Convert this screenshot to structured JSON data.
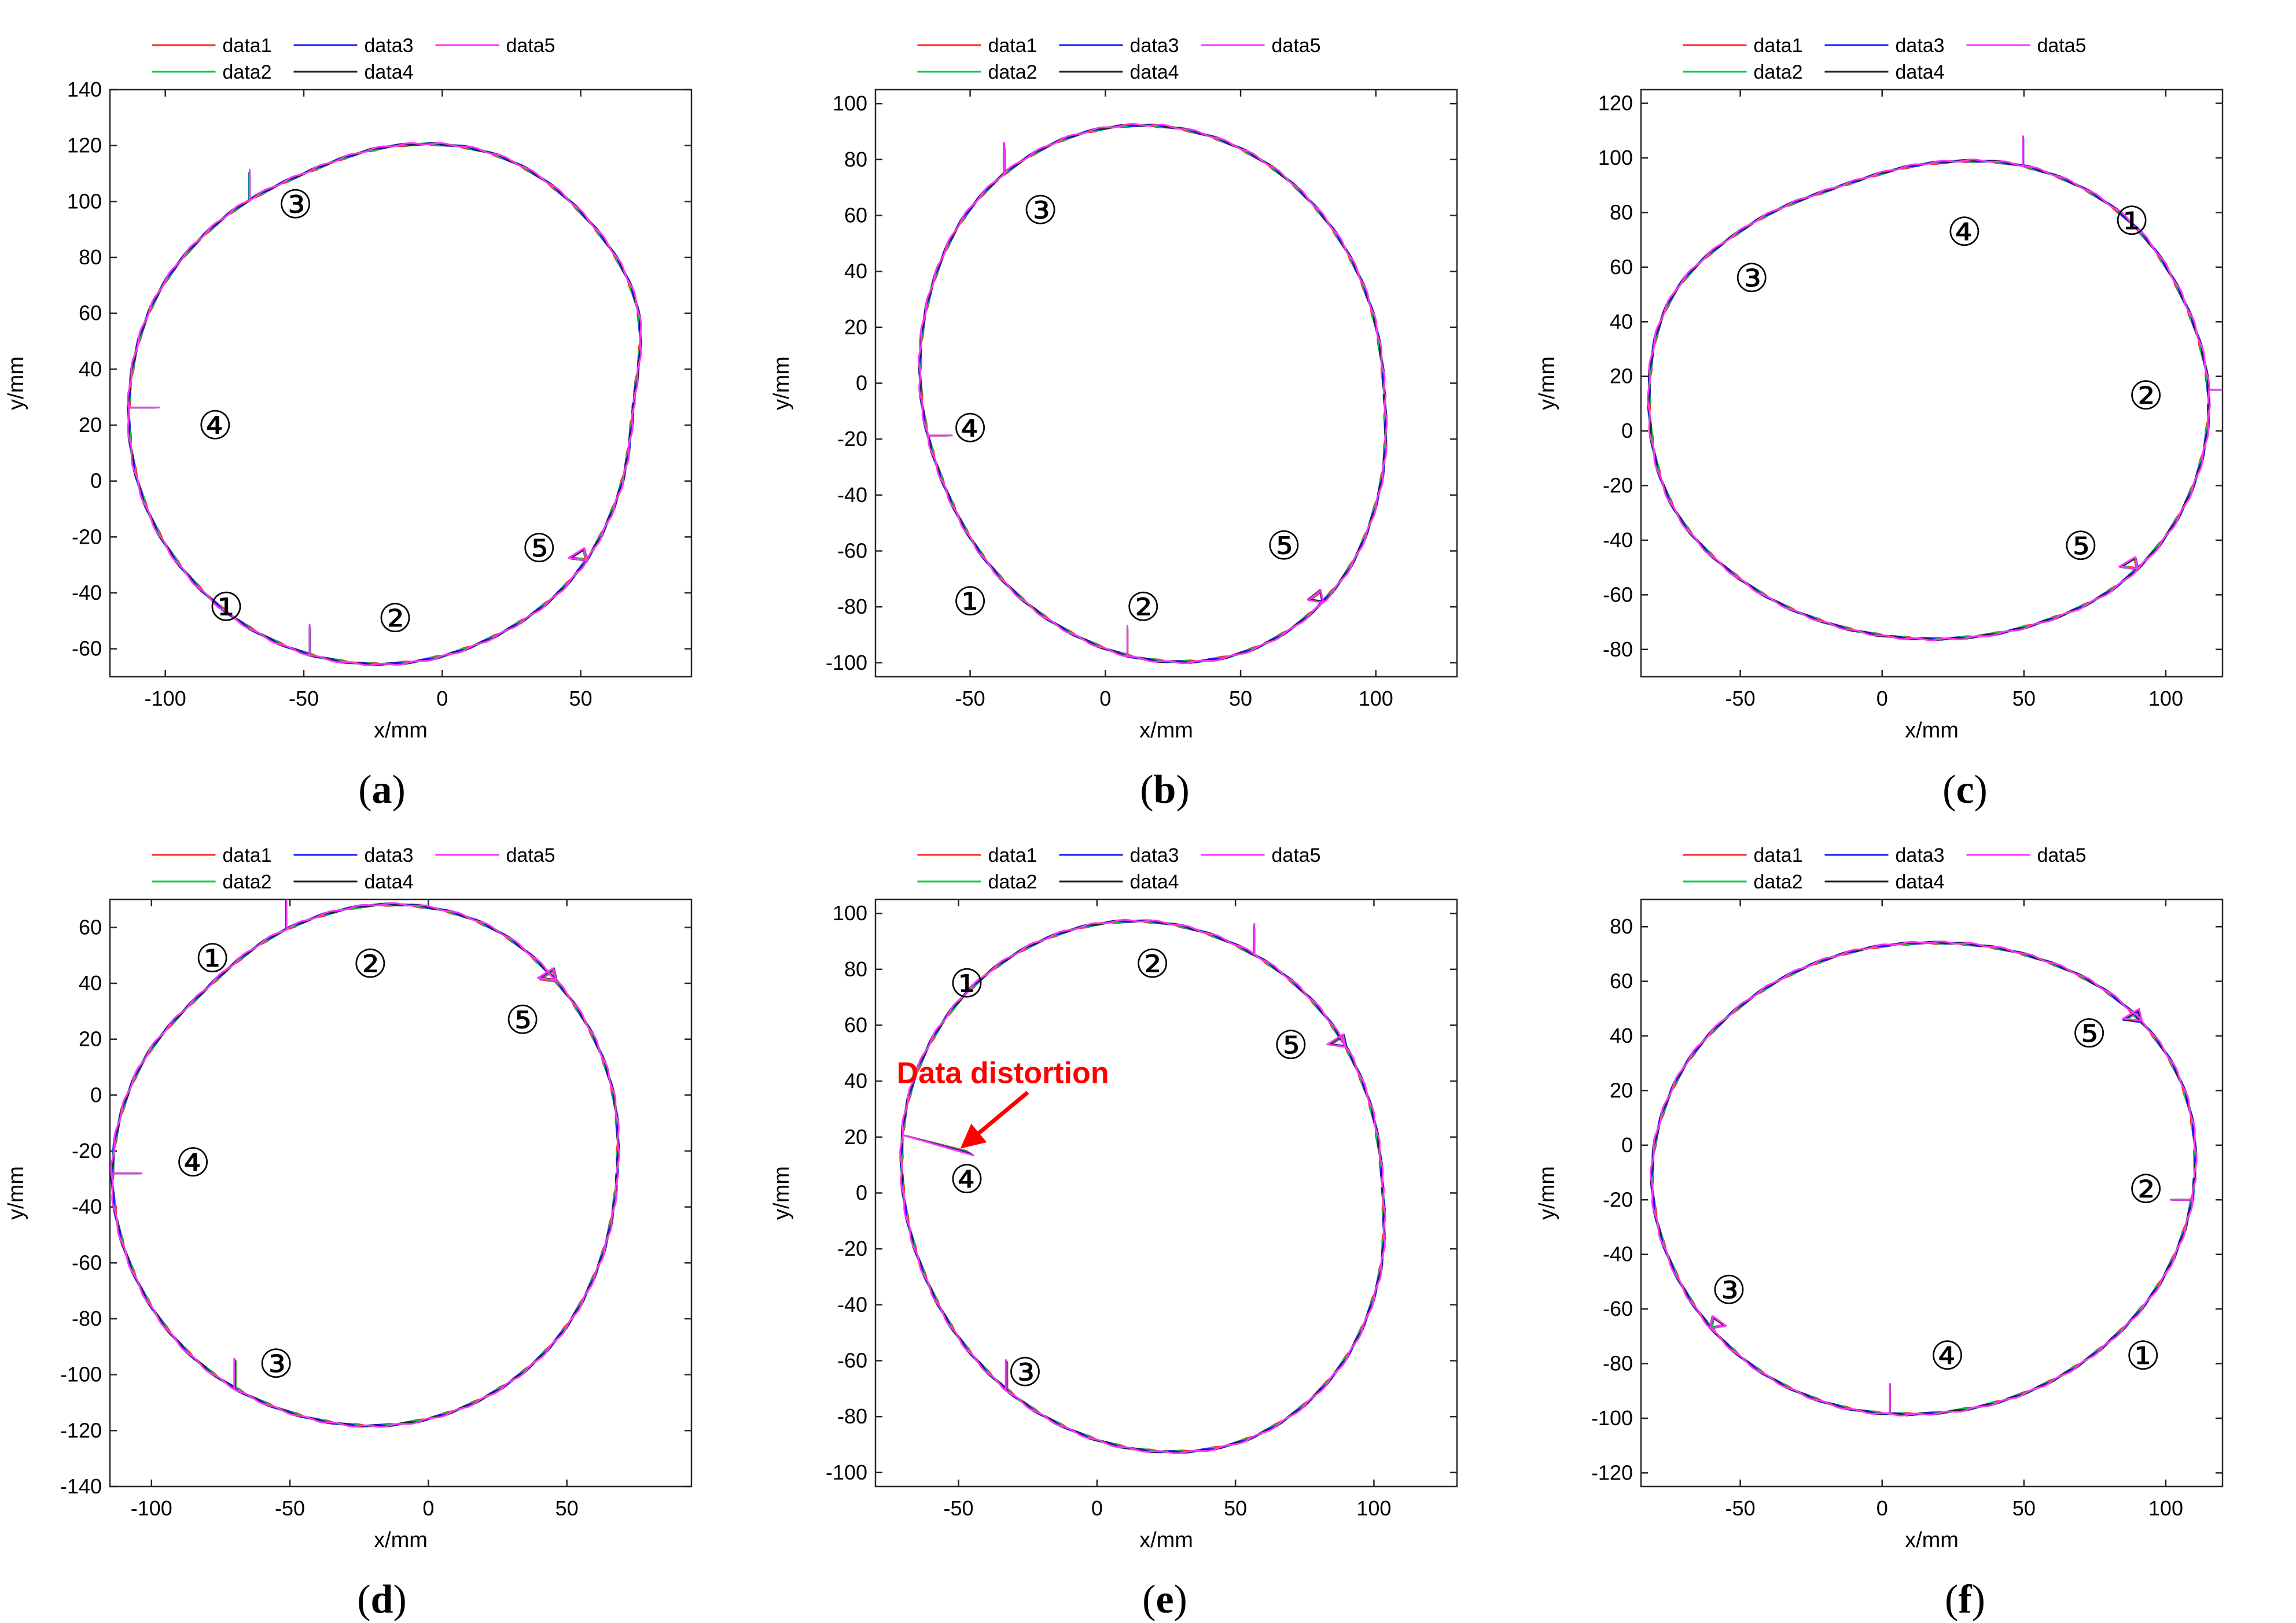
{
  "colors": {
    "data1": "#ff2a2a",
    "data2": "#00cc44",
    "data3": "#1a1aff",
    "data4": "#222222",
    "data5": "#ff33ff",
    "annotation": "#ff0000"
  },
  "chart_data": [
    {
      "type": "line",
      "panel_label": "a",
      "xlabel": "x/mm",
      "ylabel": "y/mm",
      "xlim": [
        -120,
        90
      ],
      "ylim": [
        -70,
        140
      ],
      "xticks": [
        -100,
        -50,
        0,
        50
      ],
      "yticks": [
        -60,
        -40,
        -20,
        0,
        20,
        40,
        60,
        80,
        100,
        120,
        140
      ],
      "legend": [
        "data1",
        "data2",
        "data3",
        "data4",
        "data5"
      ],
      "legend_position": "top",
      "grid": false,
      "center": [
        -15,
        28
      ],
      "radii": [
        84,
        92,
        94,
        95,
        92,
        89,
        92,
        96,
        98,
        99,
        98,
        96,
        93,
        90,
        88,
        85
      ],
      "steps": [
        {
          "angle": 250,
          "dx": 0,
          "dy": 10
        },
        {
          "angle": 127,
          "dx": 0,
          "dy": 10
        },
        {
          "angle": 181,
          "dx": 10,
          "dy": 0
        },
        {
          "angle": 320,
          "dx": -6,
          "dy": 4
        }
      ],
      "notches": [],
      "markers": [
        {
          "text": "①",
          "x": -78,
          "y": -45
        },
        {
          "text": "②",
          "x": -17,
          "y": -49
        },
        {
          "text": "③",
          "x": -53,
          "y": 99
        },
        {
          "text": "④",
          "x": -82,
          "y": 20
        },
        {
          "text": "⑤",
          "x": 35,
          "y": -24
        }
      ],
      "annotation": null
    },
    {
      "type": "line",
      "panel_label": "b",
      "xlabel": "x/mm",
      "ylabel": "y/mm",
      "xlim": [
        -85,
        130
      ],
      "ylim": [
        -105,
        105
      ],
      "xticks": [
        -50,
        0,
        50,
        100
      ],
      "yticks": [
        -100,
        -80,
        -60,
        -40,
        -20,
        0,
        20,
        40,
        60,
        80,
        100
      ],
      "legend": [
        "data1",
        "data2",
        "data3",
        "data4",
        "data5"
      ],
      "legend_position": "top",
      "grid": false,
      "center": [
        18,
        -4
      ],
      "radii": [
        85,
        86,
        89,
        93,
        96,
        97,
        95,
        90,
        86,
        84,
        86,
        90,
        95,
        98,
        96,
        90
      ],
      "steps": [
        {
          "angle": 264,
          "dx": 0,
          "dy": 10
        },
        {
          "angle": 125,
          "dx": 0,
          "dy": 10
        },
        {
          "angle": 190,
          "dx": 8,
          "dy": 0
        },
        {
          "angle": 310,
          "dx": -5,
          "dy": 4
        }
      ],
      "notches": [],
      "markers": [
        {
          "text": "①",
          "x": -50,
          "y": -78
        },
        {
          "text": "②",
          "x": 14,
          "y": -80
        },
        {
          "text": "③",
          "x": -24,
          "y": 62
        },
        {
          "text": "④",
          "x": -50,
          "y": -16
        },
        {
          "text": "⑤",
          "x": 66,
          "y": -58
        }
      ],
      "annotation": null
    },
    {
      "type": "line",
      "panel_label": "c",
      "xlabel": "x/mm",
      "ylabel": "y/mm",
      "xlim": [
        -85,
        120
      ],
      "ylim": [
        -90,
        125
      ],
      "xticks": [
        -50,
        0,
        50,
        100
      ],
      "yticks": [
        -80,
        -60,
        -40,
        -20,
        0,
        20,
        40,
        60,
        80,
        100,
        120
      ],
      "legend": [
        "data1",
        "data2",
        "data3",
        "data4",
        "data5"
      ],
      "legend_position": "top",
      "grid": false,
      "center": [
        18,
        10
      ],
      "radii": [
        97,
        96,
        96,
        93,
        88,
        86,
        92,
        100,
        100,
        99,
        93,
        88,
        86,
        88,
        93,
        96
      ],
      "steps": [
        {
          "angle": 70,
          "dx": 0,
          "dy": 10
        },
        {
          "angle": 3,
          "dx": 7,
          "dy": 0
        },
        {
          "angle": 320,
          "dx": -6,
          "dy": 4
        }
      ],
      "notches": [],
      "markers": [
        {
          "text": "①",
          "x": 88,
          "y": 77
        },
        {
          "text": "②",
          "x": 93,
          "y": 13
        },
        {
          "text": "③",
          "x": -46,
          "y": 56
        },
        {
          "text": "④",
          "x": 29,
          "y": 73
        },
        {
          "text": "⑤",
          "x": 70,
          "y": -42
        }
      ],
      "annotation": null
    },
    {
      "type": "line",
      "panel_label": "d",
      "xlabel": "x/mm",
      "ylabel": "y/mm",
      "xlim": [
        -115,
        95
      ],
      "ylim": [
        -140,
        70
      ],
      "xticks": [
        -100,
        -50,
        0,
        50
      ],
      "yticks": [
        -140,
        -120,
        -100,
        -80,
        -60,
        -40,
        -20,
        0,
        20,
        40,
        60
      ],
      "legend": [
        "data1",
        "data2",
        "data3",
        "data4",
        "data5"
      ],
      "legend_position": "top",
      "grid": false,
      "center": [
        -16,
        -28
      ],
      "radii": [
        84,
        88,
        92,
        96,
        96,
        94,
        92,
        96,
        98,
        97,
        95,
        92,
        90,
        88,
        86,
        84
      ],
      "steps": [
        {
          "angle": 112,
          "dx": 0,
          "dy": 10
        },
        {
          "angle": 235,
          "dx": 0,
          "dy": 10
        },
        {
          "angle": 180,
          "dx": 10,
          "dy": 0
        },
        {
          "angle": 48,
          "dx": -6,
          "dy": 4
        }
      ],
      "notches": [],
      "markers": [
        {
          "text": "①",
          "x": -78,
          "y": 49
        },
        {
          "text": "②",
          "x": -21,
          "y": 47
        },
        {
          "text": "③",
          "x": -55,
          "y": -96
        },
        {
          "text": "④",
          "x": -85,
          "y": -24
        },
        {
          "text": "⑤",
          "x": 34,
          "y": 27
        }
      ],
      "annotation": null
    },
    {
      "type": "line",
      "panel_label": "e",
      "xlabel": "x/mm",
      "ylabel": "y/mm",
      "xlim": [
        -80,
        130
      ],
      "ylim": [
        -105,
        105
      ],
      "xticks": [
        -50,
        0,
        50,
        100
      ],
      "yticks": [
        -100,
        -80,
        -60,
        -40,
        -20,
        0,
        20,
        40,
        60,
        80,
        100
      ],
      "legend": [
        "data1",
        "data2",
        "data3",
        "data4",
        "data5"
      ],
      "legend_position": "top",
      "grid": false,
      "center": [
        18,
        2
      ],
      "radii": [
        85,
        86,
        89,
        92,
        95,
        96,
        95,
        92,
        88,
        86,
        87,
        90,
        94,
        97,
        95,
        90
      ],
      "steps": [
        {
          "angle": 65,
          "dx": 0,
          "dy": 10
        },
        {
          "angle": 235,
          "dx": 0,
          "dy": 10
        },
        {
          "angle": 35,
          "dx": -6,
          "dy": 4
        }
      ],
      "notches": [
        {
          "angle": 168,
          "x": -47,
          "y": 15
        }
      ],
      "markers": [
        {
          "text": "①",
          "x": -47,
          "y": 75
        },
        {
          "text": "②",
          "x": 20,
          "y": 82
        },
        {
          "text": "③",
          "x": -26,
          "y": -64
        },
        {
          "text": "④",
          "x": -47,
          "y": 5
        },
        {
          "text": "⑤",
          "x": 70,
          "y": 53
        }
      ],
      "annotation": {
        "text": "Data distortion",
        "x": -34,
        "y": 43,
        "arrow_from": [
          -25,
          36
        ],
        "arrow_to": [
          -48,
          17
        ]
      }
    },
    {
      "type": "line",
      "panel_label": "f",
      "xlabel": "x/mm",
      "ylabel": "y/mm",
      "xlim": [
        -85,
        120
      ],
      "ylim": [
        -125,
        90
      ],
      "xticks": [
        -50,
        0,
        50,
        100
      ],
      "yticks": [
        -120,
        -100,
        -80,
        -60,
        -40,
        -20,
        0,
        20,
        40,
        60,
        80
      ],
      "legend": [
        "data1",
        "data2",
        "data3",
        "data4",
        "data5"
      ],
      "legend_position": "top",
      "grid": false,
      "center": [
        18,
        -12
      ],
      "radii": [
        92,
        94,
        92,
        88,
        86,
        88,
        92,
        97,
        99,
        97,
        94,
        90,
        86,
        85,
        86,
        89
      ],
      "steps": [
        {
          "angle": 355,
          "dx": -7,
          "dy": 0
        },
        {
          "angle": 260,
          "dx": 0,
          "dy": 10
        },
        {
          "angle": 215,
          "dx": 5,
          "dy": 4
        },
        {
          "angle": 38,
          "dx": -6,
          "dy": 4
        }
      ],
      "notches": [],
      "markers": [
        {
          "text": "①",
          "x": 92,
          "y": -77
        },
        {
          "text": "②",
          "x": 93,
          "y": -16
        },
        {
          "text": "③",
          "x": -54,
          "y": -53
        },
        {
          "text": "④",
          "x": 23,
          "y": -77
        },
        {
          "text": "⑤",
          "x": 73,
          "y": 41
        }
      ],
      "annotation": null
    }
  ]
}
